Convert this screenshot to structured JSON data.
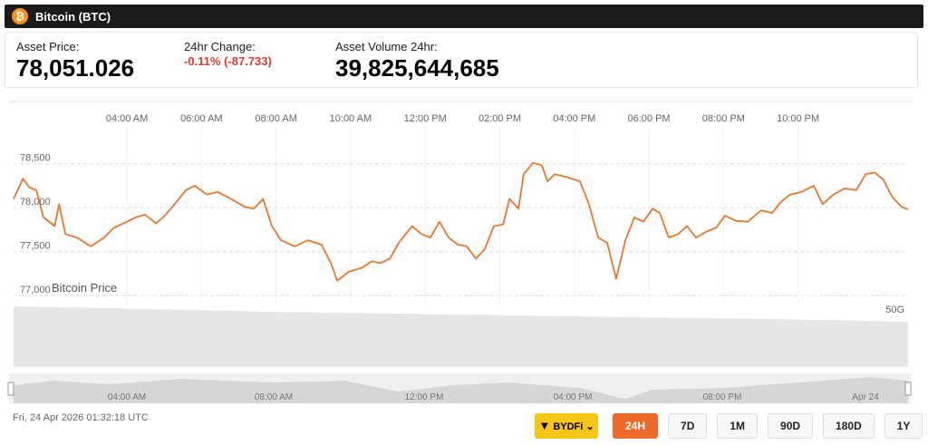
{
  "header": {
    "title": "Bitcoin (BTC)",
    "price_label": "Asset Price:",
    "price": "78,051.026",
    "change_label": "24hr Change:",
    "change": "-0.11% (-87.733)",
    "volume_label": "Asset Volume 24hr:",
    "volume": "39,825,644,685"
  },
  "chart_data": {
    "type": "line",
    "xlim": [
      0.96,
      24.95
    ],
    "xticks": [
      {
        "value": 4,
        "label": "04:00 AM"
      },
      {
        "value": 6,
        "label": "06:00 AM"
      },
      {
        "value": 8,
        "label": "08:00 AM"
      },
      {
        "value": 10,
        "label": "10:00 AM"
      },
      {
        "value": 12,
        "label": "12:00 PM"
      },
      {
        "value": 14,
        "label": "02:00 PM"
      },
      {
        "value": 16,
        "label": "04:00 PM"
      },
      {
        "value": 18,
        "label": "06:00 PM"
      },
      {
        "value": 20,
        "label": "08:00 PM"
      },
      {
        "value": 22,
        "label": "10:00 PM"
      }
    ],
    "ylim": [
      76960,
      78920
    ],
    "yticks": [
      {
        "value": 78500,
        "label": "78,500"
      },
      {
        "value": 78000,
        "label": "78,000"
      },
      {
        "value": 77500,
        "label": "77,500"
      },
      {
        "value": 77000,
        "label": "77,000"
      }
    ],
    "grid": true,
    "volume_axis_label": "50G",
    "x": [
      0.96,
      1.21,
      1.38,
      1.57,
      1.76,
      2.06,
      2.18,
      2.35,
      2.66,
      3.03,
      3.39,
      3.64,
      4.0,
      4.24,
      4.49,
      4.78,
      4.97,
      5.22,
      5.58,
      5.82,
      6.14,
      6.43,
      6.79,
      7.16,
      7.4,
      7.65,
      7.89,
      8.13,
      8.5,
      8.86,
      9.22,
      9.47,
      9.64,
      9.95,
      10.32,
      10.56,
      10.8,
      11.05,
      11.29,
      11.65,
      11.9,
      12.14,
      12.38,
      12.63,
      12.87,
      13.11,
      13.36,
      13.6,
      13.84,
      14.09,
      14.26,
      14.5,
      14.64,
      14.89,
      15.13,
      15.28,
      15.47,
      15.79,
      16.15,
      16.39,
      16.64,
      16.88,
      17.12,
      17.37,
      17.61,
      17.85,
      18.1,
      18.29,
      18.53,
      18.78,
      19.02,
      19.26,
      19.55,
      19.8,
      20.04,
      20.33,
      20.65,
      21.01,
      21.3,
      21.55,
      21.79,
      22.1,
      22.42,
      22.66,
      22.95,
      23.25,
      23.56,
      23.81,
      24.05,
      24.29,
      24.53,
      24.78,
      24.95
    ],
    "series": [
      {
        "name": "Bitcoin Price",
        "color": "#e8772e",
        "values": [
          78100,
          78330,
          78230,
          78200,
          77890,
          77790,
          78040,
          77700,
          77660,
          77560,
          77660,
          77770,
          77840,
          77890,
          77920,
          77820,
          77890,
          78010,
          78200,
          78250,
          78150,
          78180,
          78100,
          78010,
          77990,
          78100,
          77790,
          77630,
          77560,
          77630,
          77580,
          77370,
          77170,
          77270,
          77320,
          77390,
          77370,
          77420,
          77600,
          77790,
          77700,
          77660,
          77840,
          77660,
          77580,
          77560,
          77420,
          77530,
          77790,
          77810,
          78100,
          77990,
          78380,
          78510,
          78480,
          78300,
          78380,
          78350,
          78300,
          78040,
          77660,
          77600,
          77190,
          77630,
          77890,
          77840,
          77990,
          77940,
          77660,
          77700,
          77790,
          77660,
          77730,
          77770,
          77910,
          77850,
          77840,
          77970,
          77940,
          78070,
          78150,
          78180,
          78250,
          78040,
          78150,
          78220,
          78200,
          78380,
          78400,
          78320,
          78120,
          78010,
          77980
        ]
      }
    ]
  },
  "navigator_ticks": [
    "04:00 AM",
    "08:00 AM",
    "12:00 PM",
    "04:00 PM",
    "08:00 PM",
    "Apr 24"
  ],
  "footer": {
    "timestamp": "Fri, 24 Apr 2026 01:32:18 UTC",
    "exchange": "BYDFi",
    "ranges": [
      {
        "label": "24H",
        "active": true
      },
      {
        "label": "7D",
        "active": false
      },
      {
        "label": "1M",
        "active": false
      },
      {
        "label": "90D",
        "active": false
      },
      {
        "label": "180D",
        "active": false
      },
      {
        "label": "1Y",
        "active": false
      }
    ]
  }
}
